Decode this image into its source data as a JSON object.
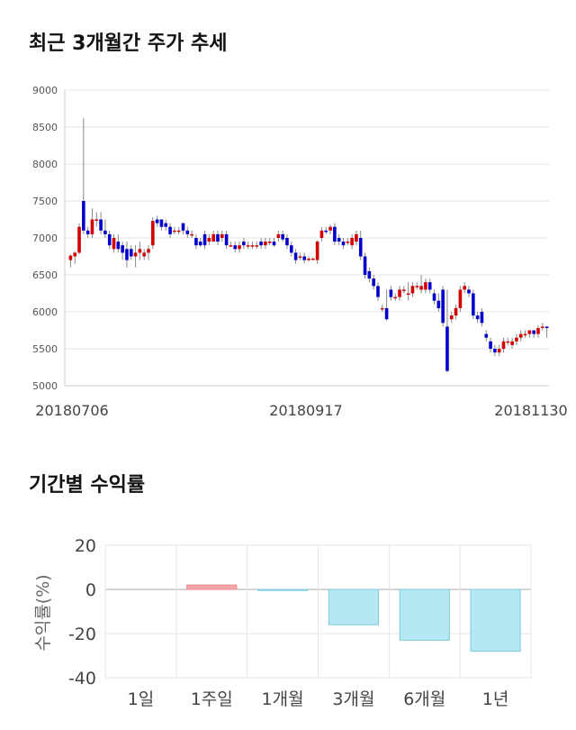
{
  "sections": {
    "price_title": "최근 3개월간 주가 추세",
    "returns_title": "기간별 수익률"
  },
  "chart_data": [
    {
      "type": "candlestick",
      "title": "최근 3개월간 주가 추세",
      "ylim": [
        5000,
        9000
      ],
      "yticks": [
        5000,
        5500,
        6000,
        6500,
        7000,
        7500,
        8000,
        8500,
        9000
      ],
      "xtick_labels": [
        "20180706",
        "20180917",
        "20181130"
      ],
      "colors": {
        "up": "#d40000",
        "down": "#0000cc",
        "wick": "#888888",
        "grid": "#e6e6e6"
      },
      "candles": [
        [
          6700,
          6760,
          6600,
          6780
        ],
        [
          6750,
          6800,
          6650,
          6820
        ],
        [
          6800,
          7150,
          6780,
          7200
        ],
        [
          7500,
          7100,
          7050,
          8620
        ],
        [
          7100,
          7050,
          7000,
          7150
        ],
        [
          7050,
          7250,
          7000,
          7400
        ],
        [
          7250,
          7250,
          7150,
          7350
        ],
        [
          7250,
          7100,
          7050,
          7350
        ],
        [
          7100,
          7050,
          7000,
          7250
        ],
        [
          7050,
          6900,
          6850,
          7100
        ],
        [
          6850,
          7000,
          6800,
          7050
        ],
        [
          6950,
          6850,
          6800,
          7050
        ],
        [
          6900,
          6800,
          6700,
          6950
        ],
        [
          6850,
          6700,
          6600,
          6950
        ],
        [
          6850,
          6750,
          6700,
          6900
        ],
        [
          6750,
          6800,
          6600,
          6900
        ],
        [
          6800,
          6850,
          6700,
          6950
        ],
        [
          6750,
          6800,
          6700,
          6850
        ],
        [
          6800,
          6850,
          6700,
          6900
        ],
        [
          6900,
          7230,
          6850,
          7280
        ],
        [
          7250,
          7200,
          7150,
          7300
        ],
        [
          7250,
          7150,
          7100,
          7250
        ],
        [
          7200,
          7150,
          7100,
          7250
        ],
        [
          7150,
          7050,
          7000,
          7200
        ],
        [
          7100,
          7100,
          7050,
          7150
        ],
        [
          7100,
          7100,
          7050,
          7150
        ],
        [
          7200,
          7100,
          7050,
          7200
        ],
        [
          7100,
          7050,
          7000,
          7150
        ],
        [
          7050,
          7050,
          7000,
          7100
        ],
        [
          7000,
          6900,
          6850,
          7050
        ],
        [
          6950,
          6900,
          6880,
          7000
        ],
        [
          7050,
          6900,
          6850,
          7100
        ],
        [
          6950,
          7000,
          6900,
          7050
        ],
        [
          6950,
          7050,
          6950,
          7100
        ],
        [
          7050,
          6950,
          6900,
          7100
        ],
        [
          7000,
          7050,
          6950,
          7100
        ],
        [
          7050,
          6900,
          6850,
          7100
        ],
        [
          6900,
          6900,
          6880,
          6950
        ],
        [
          6900,
          6850,
          6800,
          6950
        ],
        [
          6850,
          6900,
          6800,
          6950
        ],
        [
          6950,
          6900,
          6850,
          7000
        ],
        [
          6900,
          6900,
          6850,
          6950
        ],
        [
          6900,
          6900,
          6850,
          6950
        ],
        [
          6900,
          6900,
          6850,
          6950
        ],
        [
          6950,
          6900,
          6850,
          7000
        ],
        [
          6900,
          6950,
          6850,
          7000
        ],
        [
          6950,
          6950,
          6900,
          7000
        ],
        [
          6950,
          6900,
          6880,
          7000
        ],
        [
          7000,
          7050,
          6950,
          7100
        ],
        [
          7050,
          6980,
          6950,
          7100
        ],
        [
          7000,
          6900,
          6850,
          7050
        ],
        [
          6900,
          6800,
          6750,
          6950
        ],
        [
          6800,
          6700,
          6650,
          6850
        ],
        [
          6750,
          6750,
          6700,
          6800
        ],
        [
          6750,
          6700,
          6650,
          6800
        ],
        [
          6700,
          6720,
          6680,
          6750
        ],
        [
          6720,
          6720,
          6700,
          6740
        ],
        [
          6700,
          6950,
          6650,
          6970
        ],
        [
          7000,
          7100,
          6950,
          7150
        ],
        [
          7100,
          7080,
          7050,
          7150
        ],
        [
          7100,
          7150,
          7050,
          7180
        ],
        [
          7150,
          6950,
          6900,
          7200
        ],
        [
          7000,
          6950,
          6900,
          7050
        ],
        [
          6950,
          6900,
          6850,
          7000
        ],
        [
          6950,
          6950,
          6900,
          7000
        ],
        [
          6900,
          7000,
          6850,
          7050
        ],
        [
          6950,
          7050,
          6900,
          7100
        ],
        [
          7000,
          6750,
          6700,
          7100
        ],
        [
          6750,
          6500,
          6450,
          6800
        ],
        [
          6550,
          6450,
          6400,
          6600
        ],
        [
          6450,
          6350,
          6300,
          6500
        ],
        [
          6350,
          6200,
          6150,
          6400
        ],
        [
          6050,
          6050,
          6000,
          6100
        ],
        [
          6050,
          5900,
          5880,
          6300
        ],
        [
          6300,
          6200,
          6150,
          6350
        ],
        [
          6200,
          6200,
          6150,
          6250
        ],
        [
          6200,
          6300,
          6150,
          6350
        ],
        [
          6300,
          6300,
          6250,
          6350
        ],
        [
          6250,
          6250,
          6150,
          6400
        ],
        [
          6250,
          6350,
          6200,
          6400
        ],
        [
          6350,
          6350,
          6300,
          6400
        ],
        [
          6300,
          6350,
          6250,
          6500
        ],
        [
          6300,
          6400,
          6250,
          6450
        ],
        [
          6400,
          6300,
          6250,
          6450
        ],
        [
          6250,
          6150,
          6100,
          6300
        ],
        [
          6150,
          6050,
          6000,
          6250
        ],
        [
          6300,
          5850,
          5800,
          6350
        ],
        [
          5800,
          5200,
          5180,
          6300
        ],
        [
          5900,
          5950,
          5850,
          6000
        ],
        [
          5950,
          6050,
          5900,
          6100
        ],
        [
          6050,
          6300,
          6000,
          6350
        ],
        [
          6300,
          6350,
          6250,
          6400
        ],
        [
          6300,
          6250,
          6200,
          6350
        ],
        [
          6250,
          5950,
          5900,
          6300
        ],
        [
          5950,
          5900,
          5850,
          6000
        ],
        [
          6000,
          5850,
          5800,
          6050
        ],
        [
          5700,
          5650,
          5600,
          5750
        ],
        [
          5600,
          5500,
          5450,
          5650
        ],
        [
          5500,
          5450,
          5400,
          5550
        ],
        [
          5450,
          5500,
          5400,
          5550
        ],
        [
          5500,
          5600,
          5450,
          5650
        ],
        [
          5600,
          5600,
          5550,
          5650
        ],
        [
          5550,
          5600,
          5500,
          5650
        ],
        [
          5600,
          5650,
          5550,
          5700
        ],
        [
          5650,
          5700,
          5600,
          5750
        ],
        [
          5700,
          5700,
          5650,
          5750
        ],
        [
          5700,
          5750,
          5650,
          5750
        ],
        [
          5750,
          5700,
          5650,
          5750
        ],
        [
          5700,
          5780,
          5650,
          5820
        ],
        [
          5800,
          5800,
          5750,
          5850
        ],
        [
          5800,
          5780,
          5650,
          5800
        ]
      ]
    },
    {
      "type": "bar",
      "title": "기간별 수익률",
      "ylabel": "수익률(%)",
      "ylim": [
        -40,
        20
      ],
      "yticks": [
        20,
        0,
        -20,
        -40
      ],
      "categories": [
        "1일",
        "1주일",
        "1개월",
        "3개월",
        "6개월",
        "1년"
      ],
      "values": [
        0,
        2,
        -0.5,
        -16,
        -23,
        -28
      ],
      "colors": {
        "positive": "#f4a6a8",
        "negative": "#b5e8f2",
        "positive_edge": "#e88a8e",
        "negative_edge": "#7ccbdc",
        "grid": "#e6e6e6"
      }
    }
  ]
}
